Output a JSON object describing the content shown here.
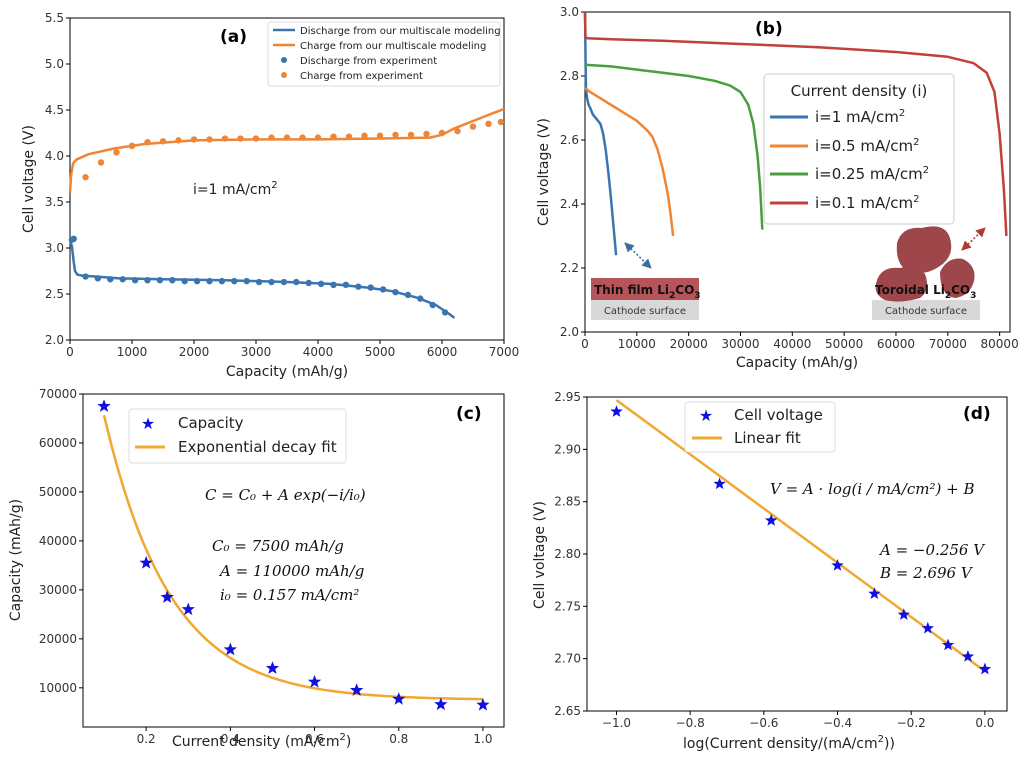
{
  "colors": {
    "blue": "#3a75b0",
    "orange": "#ee8636",
    "green": "#4a9e3f",
    "red": "#c0403a",
    "star": "#1010e0",
    "fit": "#f0a830",
    "film": "#b5555a",
    "blob": "#9e474b",
    "surface": "#d8d8d8",
    "arrow_blue": "#3a6e9e",
    "arrow_red": "#b03a2e"
  },
  "chart_data": [
    {
      "id": "a",
      "type": "line",
      "panel_label": "(a)",
      "xlabel": "Capacity (mAh/g)",
      "ylabel": "Cell voltage (V)",
      "xlim": [
        0,
        7000
      ],
      "ylim": [
        2.0,
        5.5
      ],
      "xticks": [
        0,
        1000,
        2000,
        3000,
        4000,
        5000,
        6000,
        7000
      ],
      "yticks": [
        2.0,
        2.5,
        3.0,
        3.5,
        4.0,
        4.5,
        5.0,
        5.5
      ],
      "ytick_labels": [
        "2.0",
        "2.5",
        "3.0",
        "3.5",
        "4.0",
        "4.5",
        "5.0",
        "5.5"
      ],
      "annotation": {
        "text": "i=1 mA/cm",
        "sup": "2"
      },
      "series": [
        {
          "name": "Discharge from our multiscale modeling",
          "kind": "line",
          "color": "#3a75b0",
          "x": [
            0,
            30,
            60,
            80,
            120,
            200,
            400,
            800,
            1500,
            2500,
            3500,
            4200,
            4800,
            5200,
            5600,
            5900,
            6100,
            6200
          ],
          "y": [
            3.08,
            3.02,
            2.85,
            2.75,
            2.71,
            2.7,
            2.69,
            2.67,
            2.66,
            2.65,
            2.63,
            2.61,
            2.57,
            2.53,
            2.46,
            2.38,
            2.29,
            2.24
          ]
        },
        {
          "name": "Charge from our multiscale modeling",
          "kind": "line",
          "color": "#ee8636",
          "x": [
            0,
            20,
            50,
            100,
            300,
            700,
            1200,
            2000,
            3000,
            4000,
            5000,
            5800,
            6000,
            6200,
            6500,
            6800,
            7000
          ],
          "y": [
            3.6,
            3.8,
            3.92,
            3.96,
            4.02,
            4.08,
            4.13,
            4.17,
            4.18,
            4.18,
            4.19,
            4.2,
            4.23,
            4.3,
            4.38,
            4.46,
            4.51
          ]
        },
        {
          "name": "Discharge from experiment",
          "kind": "scatter",
          "color": "#3a75b0",
          "x": [
            30,
            60,
            250,
            450,
            650,
            850,
            1050,
            1250,
            1450,
            1650,
            1850,
            2050,
            2250,
            2450,
            2650,
            2850,
            3050,
            3250,
            3450,
            3650,
            3850,
            4050,
            4250,
            4450,
            4650,
            4850,
            5050,
            5250,
            5450,
            5650,
            5850,
            6050
          ],
          "y": [
            3.09,
            3.1,
            2.69,
            2.67,
            2.66,
            2.66,
            2.65,
            2.65,
            2.65,
            2.65,
            2.64,
            2.64,
            2.64,
            2.64,
            2.64,
            2.64,
            2.63,
            2.63,
            2.63,
            2.63,
            2.62,
            2.61,
            2.6,
            2.6,
            2.58,
            2.57,
            2.55,
            2.52,
            2.49,
            2.45,
            2.38,
            2.3
          ]
        },
        {
          "name": "Charge from experiment",
          "kind": "scatter",
          "color": "#ee8636",
          "x": [
            250,
            500,
            750,
            1000,
            1250,
            1500,
            1750,
            2000,
            2250,
            2500,
            2750,
            3000,
            3250,
            3500,
            3750,
            4000,
            4250,
            4500,
            4750,
            5000,
            5250,
            5500,
            5750,
            6000,
            6250,
            6500,
            6750,
            6950
          ],
          "y": [
            3.77,
            3.93,
            4.04,
            4.11,
            4.15,
            4.16,
            4.17,
            4.18,
            4.18,
            4.19,
            4.19,
            4.19,
            4.2,
            4.2,
            4.2,
            4.2,
            4.21,
            4.21,
            4.22,
            4.22,
            4.23,
            4.23,
            4.24,
            4.25,
            4.27,
            4.32,
            4.35,
            4.37
          ]
        }
      ]
    },
    {
      "id": "b",
      "type": "line",
      "panel_label": "(b)",
      "xlabel": "Capacity (mAh/g)",
      "ylabel": "Cell voltage (V)",
      "xlim": [
        0,
        82000
      ],
      "ylim": [
        2.0,
        3.0
      ],
      "xticks": [
        0,
        10000,
        20000,
        30000,
        40000,
        50000,
        60000,
        70000,
        80000
      ],
      "yticks": [
        2.0,
        2.2,
        2.4,
        2.6,
        2.8,
        3.0
      ],
      "ytick_labels": [
        "2.0",
        "2.2",
        "2.4",
        "2.6",
        "2.8",
        "3.0"
      ],
      "legend_title": "Current density (i)",
      "series": [
        {
          "name": "i=1 mA/cm",
          "sup": "2",
          "color": "#3a75b0",
          "x": [
            0,
            100,
            200,
            400,
            700,
            1000,
            1500,
            2000,
            2500,
            3000,
            3500,
            4000,
            4500,
            5000,
            5500,
            6000
          ],
          "y": [
            3.0,
            2.86,
            2.76,
            2.73,
            2.71,
            2.7,
            2.68,
            2.67,
            2.66,
            2.65,
            2.62,
            2.57,
            2.5,
            2.42,
            2.33,
            2.24
          ]
        },
        {
          "name": "i=0.5 mA/cm",
          "sup": "2",
          "color": "#ee8636",
          "x": [
            0,
            200,
            1000,
            2000,
            4000,
            6000,
            8000,
            10000,
            12000,
            13000,
            14000,
            15000,
            16000,
            16500,
            17000
          ],
          "y": [
            2.76,
            2.76,
            2.75,
            2.74,
            2.72,
            2.7,
            2.68,
            2.66,
            2.63,
            2.61,
            2.57,
            2.51,
            2.43,
            2.37,
            2.3
          ]
        },
        {
          "name": "i=0.25 mA/cm",
          "sup": "2",
          "color": "#4a9e3f",
          "x": [
            0,
            200,
            1000,
            5000,
            10000,
            15000,
            20000,
            25000,
            28000,
            30000,
            31500,
            32500,
            33300,
            33800,
            34200
          ],
          "y": [
            2.83,
            2.835,
            2.834,
            2.83,
            2.82,
            2.81,
            2.8,
            2.785,
            2.77,
            2.75,
            2.71,
            2.65,
            2.55,
            2.45,
            2.32
          ]
        },
        {
          "name": "i=0.1 mA/cm",
          "sup": "2",
          "color": "#c0403a",
          "x": [
            0,
            100,
            500,
            5000,
            15000,
            30000,
            45000,
            60000,
            70000,
            75000,
            77500,
            79000,
            80000,
            80800,
            81300
          ],
          "y": [
            3.0,
            2.92,
            2.918,
            2.915,
            2.91,
            2.9,
            2.89,
            2.875,
            2.86,
            2.84,
            2.81,
            2.75,
            2.62,
            2.45,
            2.3
          ]
        }
      ],
      "insets": {
        "thin_film": {
          "label": "Thin film Li",
          "sub": "2",
          "tail": "CO",
          "sub2": "3",
          "surface": "Cathode surface"
        },
        "toroidal": {
          "label": "Toroidal Li",
          "sub": "2",
          "tail": "CO",
          "sub2": "3",
          "surface": "Cathode surface"
        }
      }
    },
    {
      "id": "c",
      "type": "scatter",
      "panel_label": "(c)",
      "xlabel": "Current density (mA/cm",
      "xlabel_sup": "2",
      "xlabel_tail": ")",
      "ylabel": "Capacity (mAh/g)",
      "xlim": [
        0.05,
        1.05
      ],
      "ylim": [
        2000,
        70000
      ],
      "xticks": [
        0.2,
        0.4,
        0.6,
        0.8,
        1.0
      ],
      "xtick_labels": [
        "0.2",
        "0.4",
        "0.6",
        "0.8",
        "1.0"
      ],
      "yticks": [
        10000,
        20000,
        30000,
        40000,
        50000,
        60000,
        70000
      ],
      "ytick_labels": [
        "10000",
        "20000",
        "30000",
        "40000",
        "50000",
        "60000",
        "70000"
      ],
      "series": [
        {
          "name": "Capacity",
          "kind": "scatter",
          "marker": "star",
          "color": "#1010e0",
          "x": [
            0.1,
            0.2,
            0.25,
            0.3,
            0.4,
            0.5,
            0.6,
            0.7,
            0.8,
            0.9,
            1.0
          ],
          "y": [
            67500,
            35500,
            28500,
            26000,
            17800,
            14000,
            11200,
            9500,
            7700,
            6600,
            6500
          ]
        },
        {
          "name": "Exponential decay fit",
          "kind": "line",
          "color": "#f0a830",
          "model": {
            "C0": 7500,
            "A": 110000,
            "i0": 0.157
          }
        }
      ],
      "equation": {
        "main": "C = C₀ + A exp(−i/i₀)",
        "c0": "C₀ = 7500  mAh/g",
        "a": "A = 110000  mAh/g",
        "i0": "i₀ = 0.157 mA/cm²"
      }
    },
    {
      "id": "d",
      "type": "scatter",
      "panel_label": "(d)",
      "xlabel": "log(Current density/(mA/cm",
      "xlabel_sup": "2",
      "xlabel_tail": "))",
      "ylabel": "Cell voltage (V)",
      "xlim": [
        -1.08,
        0.06
      ],
      "ylim": [
        2.65,
        2.95
      ],
      "xticks": [
        -1.0,
        -0.8,
        -0.6,
        -0.4,
        -0.2,
        0.0
      ],
      "xtick_labels": [
        "−1.0",
        "−0.8",
        "−0.6",
        "−0.4",
        "−0.2",
        "0.0"
      ],
      "yticks": [
        2.65,
        2.7,
        2.75,
        2.8,
        2.85,
        2.9,
        2.95
      ],
      "ytick_labels": [
        "2.65",
        "2.70",
        "2.75",
        "2.80",
        "2.85",
        "2.90",
        "2.95"
      ],
      "series": [
        {
          "name": "Cell voltage",
          "kind": "scatter",
          "marker": "star",
          "color": "#1010e0",
          "x": [
            -1.0,
            -0.72,
            -0.58,
            -0.4,
            -0.3,
            -0.22,
            -0.155,
            -0.1,
            -0.046,
            0.0
          ],
          "y": [
            2.936,
            2.867,
            2.832,
            2.789,
            2.762,
            2.742,
            2.729,
            2.713,
            2.702,
            2.69
          ]
        },
        {
          "name": "Linear fit",
          "kind": "line",
          "color": "#f0a830",
          "model": {
            "A": -0.256,
            "B": 2.696
          }
        }
      ],
      "equation": {
        "main": "V = A · log(i / mA/cm²) + B",
        "a": "A = −0.256  V",
        "b": "B = 2.696  V"
      }
    }
  ]
}
